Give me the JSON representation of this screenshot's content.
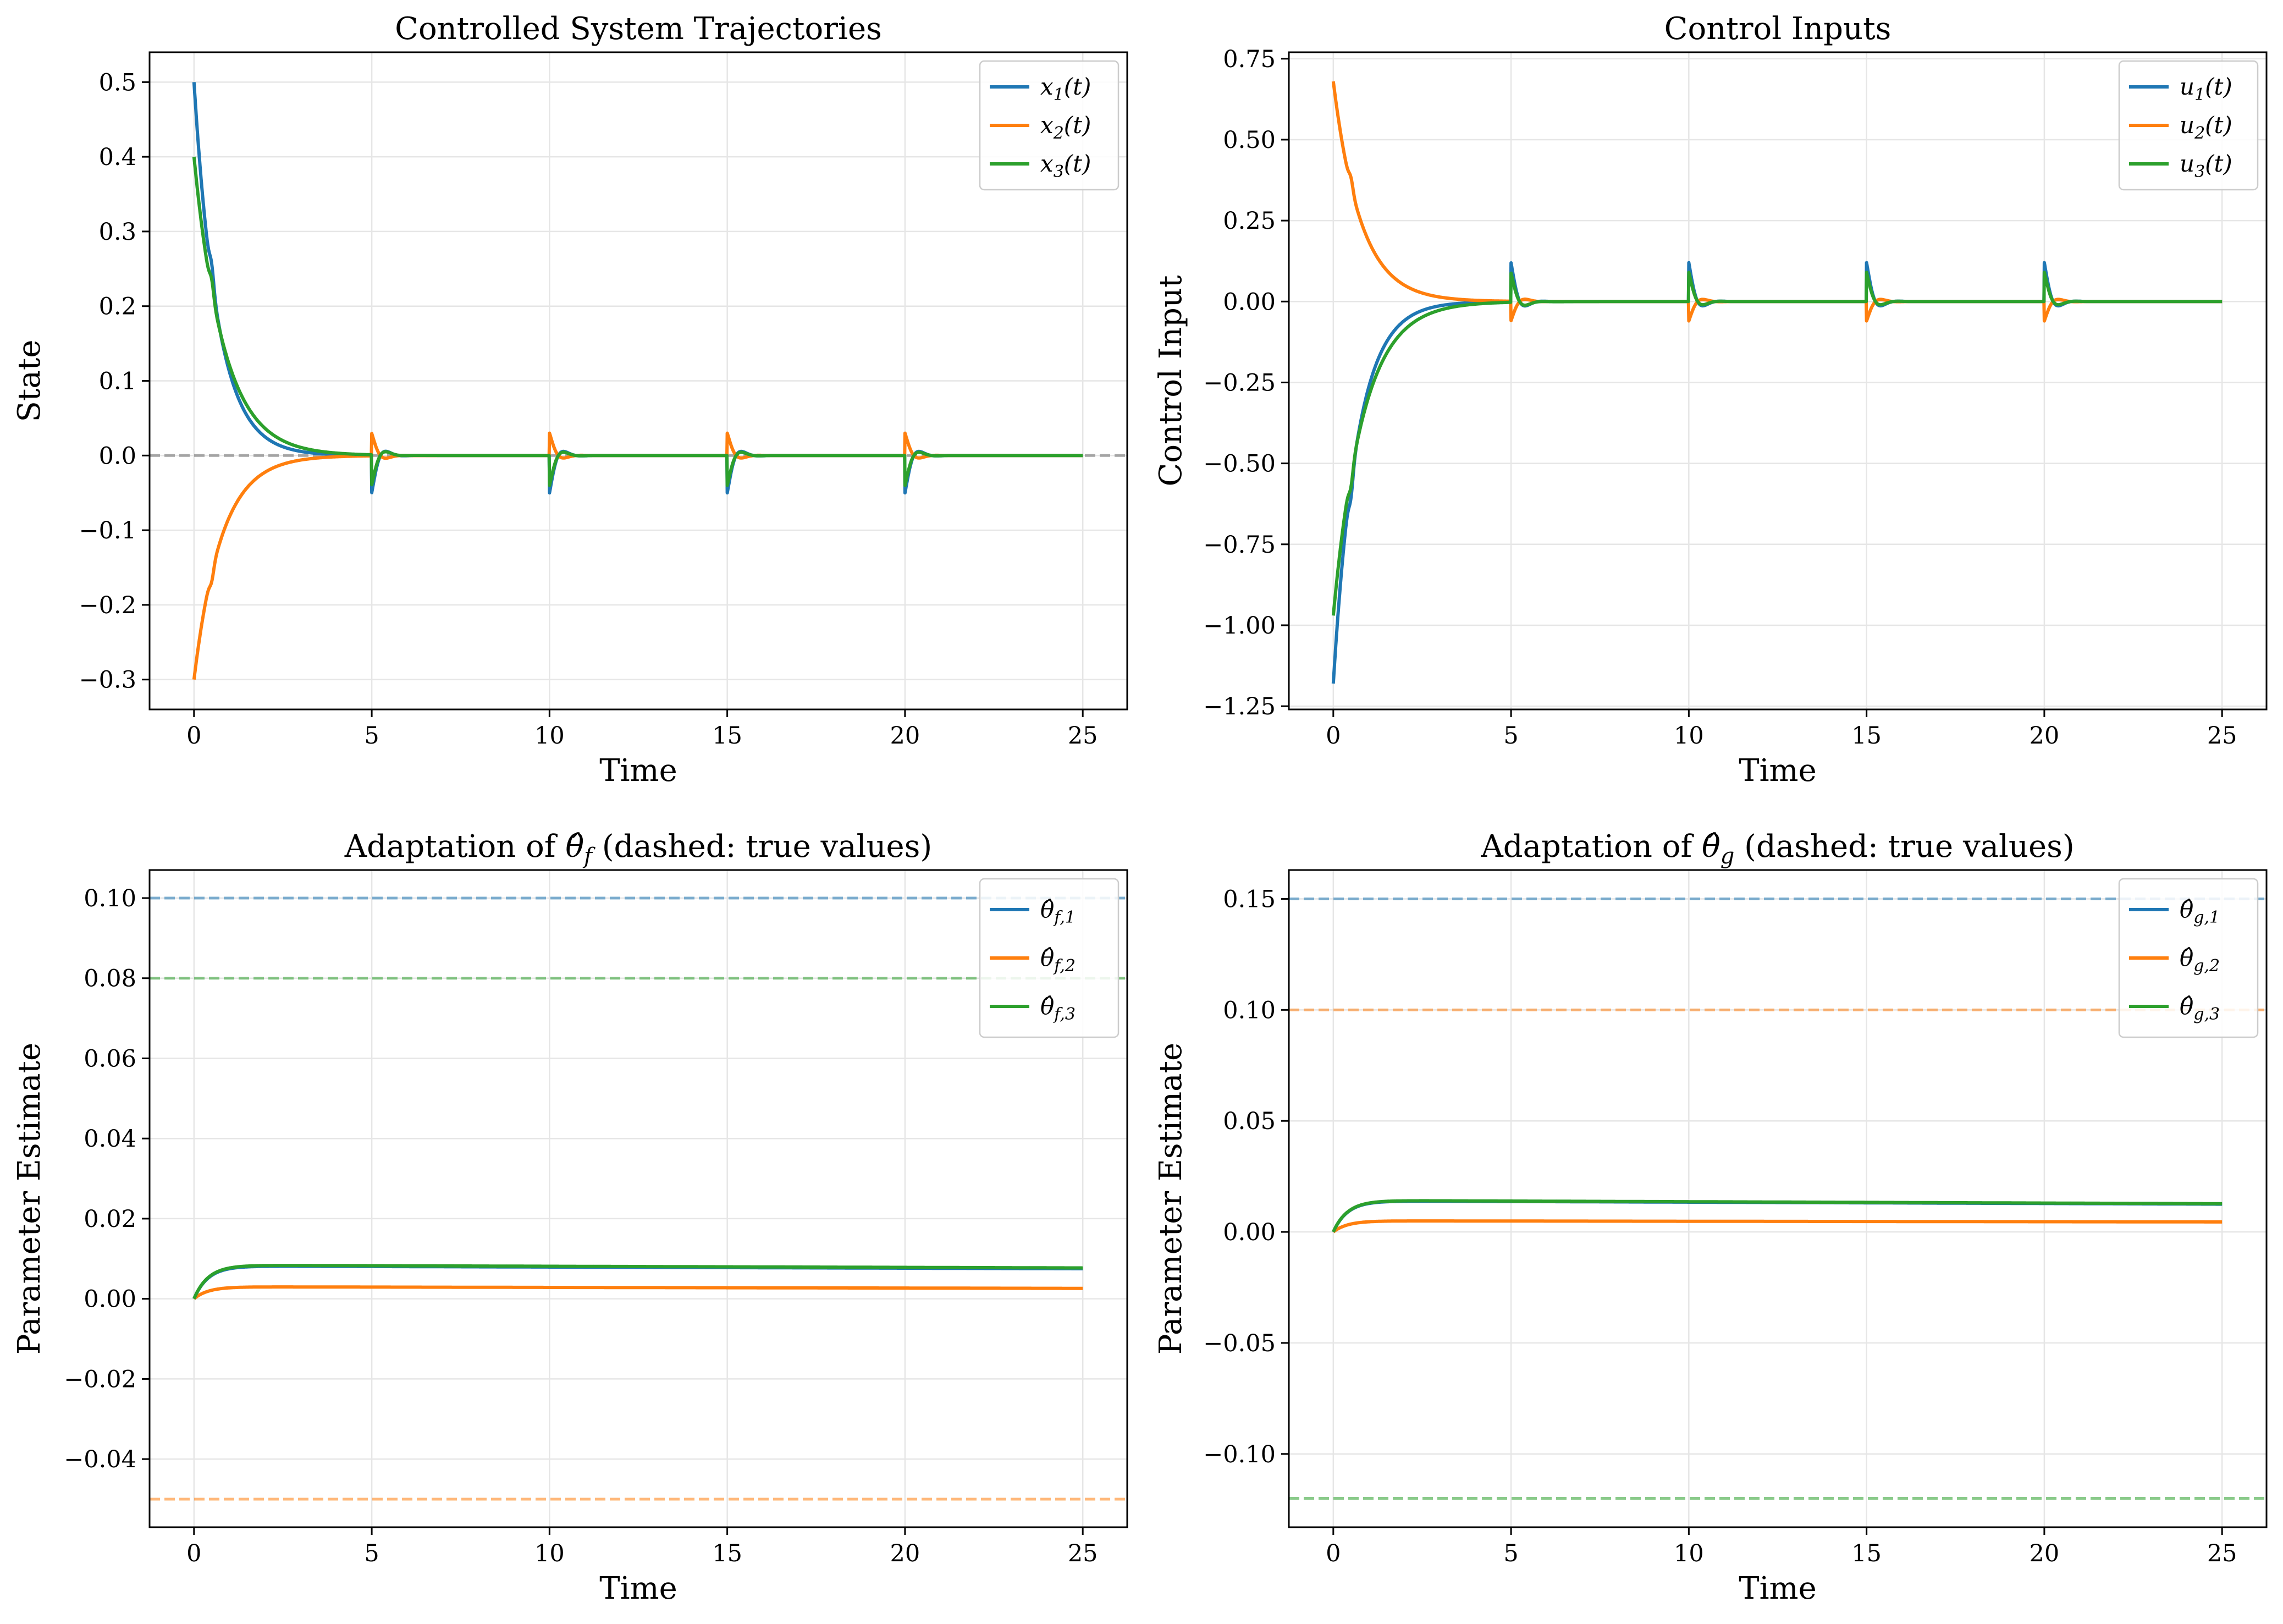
{
  "chart_data": [
    {
      "type": "line",
      "title": "Controlled System Trajectories",
      "xlabel": "Time",
      "ylabel": "State",
      "xlim": [
        -1.25,
        26.25
      ],
      "ylim": [
        -0.34,
        0.54
      ],
      "xticks": [
        0,
        5,
        10,
        15,
        20,
        25
      ],
      "yticks": [
        -0.3,
        -0.2,
        -0.1,
        0.0,
        0.1,
        0.2,
        0.3,
        0.4,
        0.5
      ],
      "ytick_labels": [
        "−0.3",
        "−0.2",
        "−0.1",
        "0.0",
        "0.1",
        "0.2",
        "0.3",
        "0.4",
        "0.5"
      ],
      "grid": true,
      "legend_position": "top-right",
      "reference_lines": [
        {
          "y": 0.0,
          "color": "#999999",
          "style": "dashed"
        }
      ],
      "series": [
        {
          "name": "x1(t)",
          "base": "x",
          "sub": "1",
          "suffix": "(t)",
          "color": "#1f77b4",
          "initial": 0.5,
          "rate": 1.5,
          "kink": 0.5,
          "pulse": -0.05,
          "pulse_decay": 0.03
        },
        {
          "name": "x2(t)",
          "base": "x",
          "sub": "2",
          "suffix": "(t)",
          "color": "#ff7f0e",
          "initial": -0.3,
          "rate": 1.3,
          "kink": 0.5,
          "pulse": 0.03,
          "pulse_decay": 0.003
        },
        {
          "name": "x3(t)",
          "base": "x",
          "sub": "3",
          "suffix": "(t)",
          "color": "#2ca02c",
          "initial": 0.4,
          "rate": 1.2,
          "kink": 0.5,
          "pulse": -0.04,
          "pulse_decay": 0.025
        }
      ],
      "pulse_times": [
        5,
        10,
        15,
        20
      ],
      "t_end": 25
    },
    {
      "type": "line",
      "title": "Control Inputs",
      "xlabel": "Time",
      "ylabel": "Control Input",
      "xlim": [
        -1.25,
        26.25
      ],
      "ylim": [
        -1.26,
        0.77
      ],
      "xticks": [
        0,
        5,
        10,
        15,
        20,
        25
      ],
      "yticks": [
        -1.25,
        -1.0,
        -0.75,
        -0.5,
        -0.25,
        0.0,
        0.25,
        0.5,
        0.75
      ],
      "ytick_labels": [
        "−1.25",
        "−1.00",
        "−0.75",
        "−0.50",
        "−0.25",
        "0.00",
        "0.25",
        "0.50",
        "0.75"
      ],
      "grid": true,
      "legend_position": "top-right",
      "reference_lines": [],
      "series": [
        {
          "name": "u1(t)",
          "base": "u",
          "sub": "1",
          "suffix": "(t)",
          "color": "#1f77b4",
          "initial": -1.18,
          "rate": 1.5,
          "kink": 0.5,
          "pulse": 0.12,
          "pulse_decay": 0.06
        },
        {
          "name": "u2(t)",
          "base": "u",
          "sub": "2",
          "suffix": "(t)",
          "color": "#ff7f0e",
          "initial": 0.68,
          "rate": 1.3,
          "kink": 0.5,
          "pulse": -0.06,
          "pulse_decay": 0.03
        },
        {
          "name": "u3(t)",
          "base": "u",
          "sub": "3",
          "suffix": "(t)",
          "color": "#2ca02c",
          "initial": -0.97,
          "rate": 1.2,
          "kink": 0.5,
          "pulse": 0.09,
          "pulse_decay": 0.06
        }
      ],
      "pulse_times": [
        5,
        10,
        15,
        20
      ],
      "t_end": 25
    },
    {
      "type": "line",
      "title_prefix": "Adaptation of ",
      "title_symbol": "θ̂",
      "title_sub": "f",
      "title_suffix": " (dashed: true values)",
      "xlabel": "Time",
      "ylabel": "Parameter Estimate",
      "xlim": [
        -1.25,
        26.25
      ],
      "ylim": [
        -0.057,
        0.107
      ],
      "xticks": [
        0,
        5,
        10,
        15,
        20,
        25
      ],
      "yticks": [
        -0.04,
        -0.02,
        0.0,
        0.02,
        0.04,
        0.06,
        0.08,
        0.1
      ],
      "ytick_labels": [
        "−0.04",
        "−0.02",
        "0.00",
        "0.02",
        "0.04",
        "0.06",
        "0.08",
        "0.10"
      ],
      "grid": true,
      "legend_position": "top-right",
      "reference_lines": [
        {
          "y": 0.1,
          "color": "#1f77b4",
          "style": "dashed"
        },
        {
          "y": -0.05,
          "color": "#ff7f0e",
          "style": "dashed"
        },
        {
          "y": 0.08,
          "color": "#2ca02c",
          "style": "dashed"
        }
      ],
      "series": [
        {
          "name": "θ̂f,1",
          "base": "θ̂",
          "sub": "f,1",
          "suffix": "",
          "color": "#1f77b4",
          "final": 0.0082,
          "end": 0.0075,
          "rise": 2.5
        },
        {
          "name": "θ̂f,2",
          "base": "θ̂",
          "sub": "f,2",
          "suffix": "",
          "color": "#ff7f0e",
          "final": 0.003,
          "end": 0.0026,
          "rise": 2.5
        },
        {
          "name": "θ̂f,3",
          "base": "θ̂",
          "sub": "f,3",
          "suffix": "",
          "color": "#2ca02c",
          "final": 0.0084,
          "end": 0.0077,
          "rise": 2.5
        }
      ],
      "t_end": 25
    },
    {
      "type": "line",
      "title_prefix": "Adaptation of ",
      "title_symbol": "θ̂",
      "title_sub": "g",
      "title_suffix": " (dashed: true values)",
      "xlabel": "Time",
      "ylabel": "Parameter Estimate",
      "xlim": [
        -1.25,
        26.25
      ],
      "ylim": [
        -0.133,
        0.163
      ],
      "xticks": [
        0,
        5,
        10,
        15,
        20,
        25
      ],
      "yticks": [
        -0.1,
        -0.05,
        0.0,
        0.05,
        0.1,
        0.15
      ],
      "ytick_labels": [
        "−0.10",
        "−0.05",
        "0.00",
        "0.05",
        "0.10",
        "0.15"
      ],
      "grid": true,
      "legend_position": "top-right",
      "reference_lines": [
        {
          "y": 0.15,
          "color": "#1f77b4",
          "style": "dashed"
        },
        {
          "y": 0.1,
          "color": "#ff7f0e",
          "style": "dashed"
        },
        {
          "y": -0.12,
          "color": "#2ca02c",
          "style": "dashed"
        }
      ],
      "series": [
        {
          "name": "θ̂g,1",
          "base": "θ̂",
          "sub": "g,1",
          "suffix": "",
          "color": "#1f77b4",
          "final": 0.014,
          "end": 0.0125,
          "rise": 2.5
        },
        {
          "name": "θ̂g,2",
          "base": "θ̂",
          "sub": "g,2",
          "suffix": "",
          "color": "#ff7f0e",
          "final": 0.005,
          "end": 0.0045,
          "rise": 2.5
        },
        {
          "name": "θ̂g,3",
          "base": "θ̂",
          "sub": "g,3",
          "suffix": "",
          "color": "#2ca02c",
          "final": 0.0142,
          "end": 0.0127,
          "rise": 2.5
        }
      ],
      "t_end": 25
    }
  ]
}
